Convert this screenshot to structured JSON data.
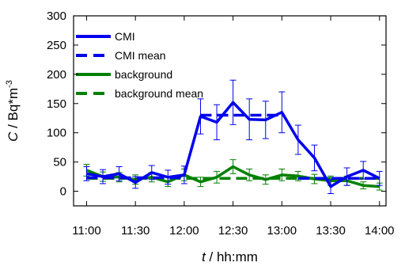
{
  "chart_data": {
    "type": "line",
    "title": "",
    "xlabel_var": "t",
    "xlabel_unit": " / hh:mm",
    "ylabel_var": "C",
    "ylabel_unit": " / Bq*m",
    "ylabel_exp": "-3",
    "ylim": [
      -25,
      300
    ],
    "xlim_minutes": [
      652,
      844
    ],
    "y_ticks": [
      0,
      50,
      100,
      150,
      200,
      250,
      300
    ],
    "x_ticks": [
      {
        "value": "11:00",
        "minutes": 660
      },
      {
        "value": "11:30",
        "minutes": 690
      },
      {
        "value": "12:00",
        "minutes": 720
      },
      {
        "value": "12:30",
        "minutes": 750
      },
      {
        "value": "13:00",
        "minutes": 780
      },
      {
        "value": "13:30",
        "minutes": 810
      },
      {
        "value": "14:00",
        "minutes": 840
      }
    ],
    "x_times": [
      "11:00",
      "11:10",
      "11:20",
      "11:30",
      "11:40",
      "11:50",
      "12:00",
      "12:10",
      "12:20",
      "12:30",
      "12:40",
      "12:50",
      "13:00",
      "13:10",
      "13:20",
      "13:30",
      "13:40",
      "13:50",
      "14:00"
    ],
    "legend_position": "top-left",
    "series": [
      {
        "name": "CMI",
        "color": "#0000ee",
        "style": "solid",
        "values": [
          30,
          25,
          30,
          15,
          32,
          24,
          28,
          128,
          118,
          152,
          123,
          122,
          135,
          88,
          57,
          8,
          25,
          36,
          22
        ],
        "err": [
          12,
          12,
          12,
          10,
          12,
          12,
          15,
          30,
          30,
          38,
          35,
          32,
          35,
          25,
          22,
          12,
          15,
          15,
          12
        ]
      },
      {
        "name": "CMI mean",
        "color": "#0000ee",
        "style": "dashed",
        "segments": [
          {
            "x": [
              "11:00",
              "12:00"
            ],
            "y": 23
          },
          {
            "x": [
              "12:10",
              "13:00"
            ],
            "y": 130
          },
          {
            "x": [
              "13:10",
              "14:00"
            ],
            "y": 22
          }
        ]
      },
      {
        "name": "background",
        "color": "#008000",
        "style": "solid",
        "values": [
          36,
          25,
          24,
          20,
          24,
          16,
          28,
          16,
          24,
          42,
          28,
          20,
          28,
          26,
          21,
          18,
          18,
          10,
          8
        ],
        "err": [
          10,
          8,
          8,
          8,
          8,
          8,
          10,
          8,
          10,
          12,
          10,
          8,
          10,
          8,
          8,
          8,
          8,
          6,
          6
        ]
      },
      {
        "name": "background mean",
        "color": "#008000",
        "style": "dashed",
        "segments": [
          {
            "x": [
              "11:00",
              "14:00"
            ],
            "y": 22
          }
        ]
      }
    ]
  }
}
